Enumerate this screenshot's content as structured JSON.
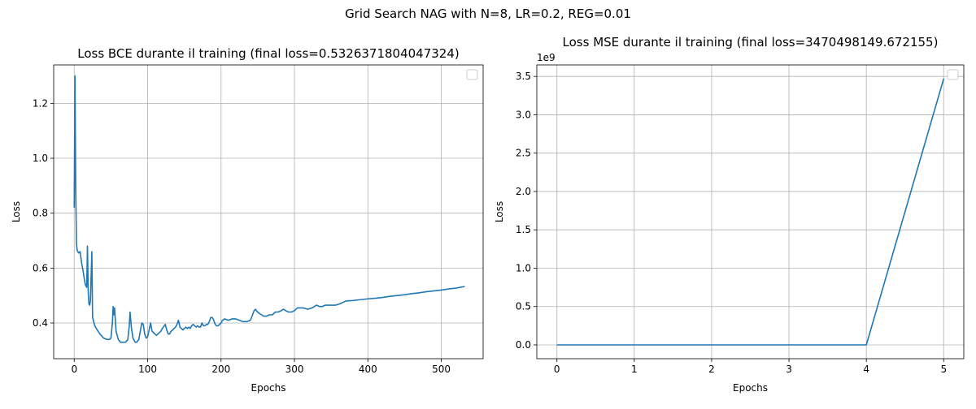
{
  "figure": {
    "suptitle": "Grid Search NAG with N=8, LR=0.2, REG=0.01"
  },
  "chart_data": [
    {
      "type": "line",
      "title": "Loss BCE durante il training (final loss=0.5326371804047324)",
      "xlabel": "Epochs",
      "ylabel": "Loss",
      "xlim": [
        -28,
        557
      ],
      "ylim": [
        0.27,
        1.34
      ],
      "xticks": [
        0,
        100,
        200,
        300,
        400,
        500
      ],
      "xtick_labels": [
        "0",
        "100",
        "200",
        "300",
        "400",
        "500"
      ],
      "yticks": [
        0.4,
        0.6,
        0.8,
        1.0,
        1.2
      ],
      "ytick_labels": [
        "0.4",
        "0.6",
        "0.8",
        "1.0",
        "1.2"
      ],
      "grid": true,
      "legend": "upper right (empty)",
      "offset_label": "",
      "series": [
        {
          "color": "#1f77b4",
          "x": [
            0,
            1,
            2,
            3,
            4,
            6,
            8,
            10,
            12,
            15,
            17,
            18,
            19,
            20,
            21,
            22,
            24,
            25,
            26,
            28,
            30,
            35,
            40,
            45,
            48,
            50,
            52,
            53,
            54,
            55,
            56,
            57,
            60,
            63,
            66,
            70,
            73,
            75,
            76,
            78,
            80,
            83,
            85,
            88,
            90,
            92,
            94,
            96,
            98,
            100,
            102,
            104,
            106,
            108,
            110,
            112,
            114,
            118,
            120,
            124,
            126,
            128,
            130,
            132,
            134,
            138,
            140,
            142,
            144,
            146,
            148,
            150,
            152,
            154,
            156,
            158,
            160,
            162,
            164,
            166,
            168,
            170,
            172,
            174,
            176,
            178,
            180,
            182,
            184,
            186,
            188,
            190,
            192,
            194,
            196,
            198,
            200,
            202,
            205,
            210,
            215,
            220,
            225,
            230,
            235,
            240,
            243,
            245,
            247,
            248,
            250,
            252,
            255,
            258,
            262,
            266,
            270,
            274,
            278,
            282,
            285,
            288,
            292,
            296,
            300,
            304,
            308,
            312,
            318,
            324,
            330,
            334,
            338,
            342,
            346,
            350,
            356,
            362,
            370,
            380,
            390,
            400,
            410,
            420,
            430,
            440,
            450,
            460,
            470,
            480,
            490,
            500,
            510,
            520,
            532
          ],
          "y": [
            0.82,
            1.3,
            0.9,
            0.69,
            0.665,
            0.655,
            0.66,
            0.62,
            0.59,
            0.54,
            0.53,
            0.68,
            0.52,
            0.47,
            0.465,
            0.48,
            0.66,
            0.42,
            0.41,
            0.39,
            0.38,
            0.36,
            0.345,
            0.34,
            0.34,
            0.345,
            0.4,
            0.46,
            0.43,
            0.455,
            0.41,
            0.37,
            0.34,
            0.33,
            0.33,
            0.33,
            0.34,
            0.39,
            0.44,
            0.38,
            0.345,
            0.33,
            0.33,
            0.34,
            0.37,
            0.4,
            0.395,
            0.36,
            0.345,
            0.35,
            0.375,
            0.4,
            0.37,
            0.365,
            0.36,
            0.355,
            0.36,
            0.37,
            0.38,
            0.395,
            0.375,
            0.36,
            0.36,
            0.37,
            0.375,
            0.385,
            0.395,
            0.41,
            0.385,
            0.38,
            0.375,
            0.38,
            0.385,
            0.38,
            0.385,
            0.38,
            0.39,
            0.395,
            0.39,
            0.385,
            0.39,
            0.385,
            0.385,
            0.4,
            0.39,
            0.39,
            0.395,
            0.395,
            0.405,
            0.42,
            0.42,
            0.41,
            0.395,
            0.39,
            0.39,
            0.395,
            0.4,
            0.41,
            0.415,
            0.41,
            0.415,
            0.415,
            0.41,
            0.405,
            0.405,
            0.41,
            0.43,
            0.445,
            0.45,
            0.445,
            0.44,
            0.435,
            0.43,
            0.425,
            0.425,
            0.43,
            0.43,
            0.44,
            0.44,
            0.445,
            0.45,
            0.445,
            0.44,
            0.44,
            0.445,
            0.455,
            0.455,
            0.455,
            0.45,
            0.455,
            0.465,
            0.46,
            0.46,
            0.465,
            0.465,
            0.465,
            0.465,
            0.47,
            0.48,
            0.482,
            0.485,
            0.488,
            0.49,
            0.493,
            0.497,
            0.5,
            0.503,
            0.507,
            0.51,
            0.514,
            0.517,
            0.52,
            0.524,
            0.527,
            0.533
          ]
        }
      ]
    },
    {
      "type": "line",
      "title": "Loss MSE durante il training (final loss=3470498149.672155)",
      "xlabel": "Epochs",
      "ylabel": "Loss",
      "xlim": [
        -0.26,
        5.26
      ],
      "ylim": [
        -0.18,
        3.65
      ],
      "xticks": [
        0,
        1,
        2,
        3,
        4,
        5
      ],
      "xtick_labels": [
        "0",
        "1",
        "2",
        "3",
        "4",
        "5"
      ],
      "yticks": [
        0.0,
        0.5,
        1.0,
        1.5,
        2.0,
        2.5,
        3.0,
        3.5
      ],
      "ytick_labels": [
        "0.0",
        "0.5",
        "1.0",
        "1.5",
        "2.0",
        "2.5",
        "3.0",
        "3.5"
      ],
      "grid": true,
      "legend": "upper right (empty)",
      "offset_label": "1e9",
      "series": [
        {
          "color": "#1f77b4",
          "x": [
            0,
            1,
            2,
            3,
            4,
            5
          ],
          "y": [
            0,
            0,
            0,
            0,
            0,
            3.4705
          ]
        }
      ]
    }
  ]
}
